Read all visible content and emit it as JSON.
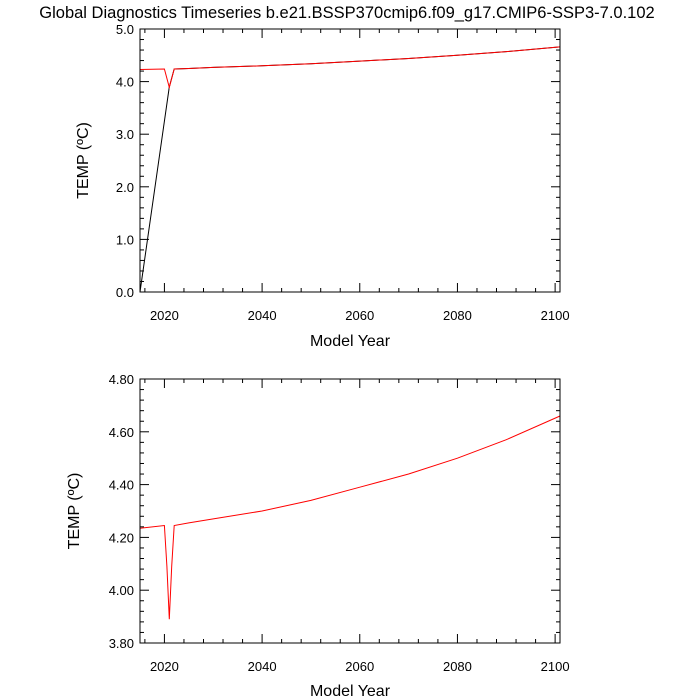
{
  "title": "Global Diagnostics Timeseries b.e21.BSSP370cmip6.f09_g17.CMIP6-SSP3-7.0.102",
  "colors": {
    "series_red": "#ff0000",
    "series_black": "#000000",
    "axis": "#000000",
    "background": "#ffffff"
  },
  "chart_data": [
    {
      "type": "line",
      "xlabel": "Model Year",
      "ylabel": "TEMP (ºC)",
      "xlim": [
        2015,
        2101
      ],
      "ylim": [
        0.0,
        5.0
      ],
      "xticks": [
        2020,
        2040,
        2060,
        2080,
        2100
      ],
      "xtick_labels": [
        "2020",
        "2040",
        "2060",
        "2080",
        "2100"
      ],
      "yticks": [
        0.0,
        1.0,
        2.0,
        3.0,
        4.0,
        5.0
      ],
      "ytick_labels": [
        "0.0",
        "1.0",
        "2.0",
        "3.0",
        "4.0",
        "5.0"
      ],
      "series": [
        {
          "color": "#000000",
          "x": [
            2015,
            2021,
            2022,
            2025,
            2030,
            2040,
            2050,
            2060,
            2070,
            2080,
            2090,
            2101
          ],
          "y": [
            0.0,
            3.9,
            4.24,
            4.25,
            4.27,
            4.3,
            4.34,
            4.39,
            4.44,
            4.5,
            4.57,
            4.66
          ]
        },
        {
          "color": "#ff0000",
          "x": [
            2015,
            2020,
            2021,
            2022,
            2025,
            2030,
            2040,
            2050,
            2060,
            2070,
            2080,
            2090,
            2101
          ],
          "y": [
            4.23,
            4.24,
            3.89,
            4.24,
            4.25,
            4.27,
            4.3,
            4.34,
            4.39,
            4.44,
            4.5,
            4.57,
            4.66
          ]
        }
      ]
    },
    {
      "type": "line",
      "xlabel": "Model Year",
      "ylabel": "TEMP (ºC)",
      "xlim": [
        2015,
        2101
      ],
      "ylim": [
        3.8,
        4.8
      ],
      "xticks": [
        2020,
        2040,
        2060,
        2080,
        2100
      ],
      "xtick_labels": [
        "2020",
        "2040",
        "2060",
        "2080",
        "2100"
      ],
      "yticks": [
        3.8,
        4.0,
        4.2,
        4.4,
        4.6,
        4.8
      ],
      "ytick_labels": [
        "3.80",
        "4.00",
        "4.20",
        "4.40",
        "4.60",
        "4.80"
      ],
      "series": [
        {
          "color": "#ff0000",
          "x": [
            2015,
            2020,
            2020.5,
            2021,
            2021.5,
            2022,
            2025,
            2030,
            2040,
            2050,
            2060,
            2070,
            2080,
            2090,
            2101
          ],
          "y": [
            4.235,
            4.245,
            4.09,
            3.89,
            4.09,
            4.245,
            4.255,
            4.27,
            4.3,
            4.34,
            4.39,
            4.44,
            4.5,
            4.57,
            4.66
          ]
        }
      ]
    }
  ]
}
